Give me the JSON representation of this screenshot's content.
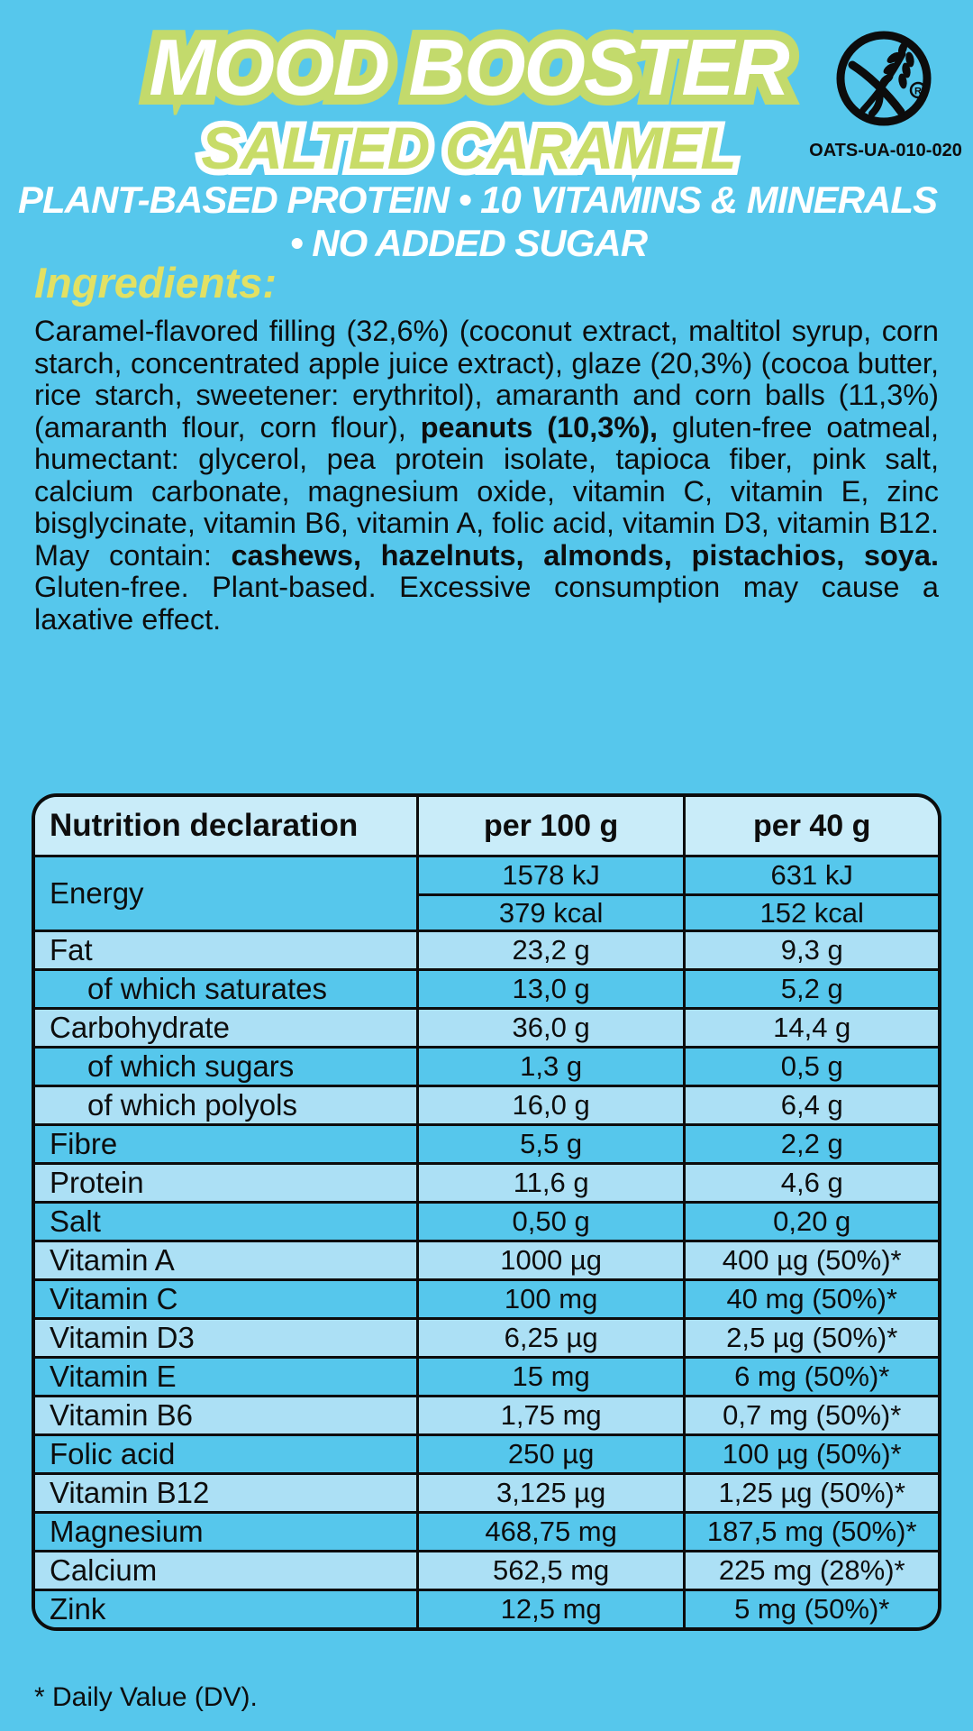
{
  "page": {
    "background": "#56C7EC"
  },
  "header": {
    "title": "MOOD BOOSTER",
    "subtitle": "SALTED CARAMEL",
    "tagline_line1": "PLANT-BASED PROTEIN • 10 VITAMINS & MINERALS",
    "tagline_line2": "• NO ADDED SUGAR",
    "gluten_free_code": "OATS-UA-010-020",
    "colors": {
      "title_outline": "#C3DA6C",
      "subtitle_fill": "#C8DC68",
      "heading_yellow": "#E2E164"
    }
  },
  "ingredients": {
    "heading": "Ingredients:",
    "segments": [
      {
        "text": "Caramel-flavored filling (32,6%) (coconut extract, maltitol syrup, corn starch, concentrated apple juice extract), glaze (20,3%) (cocoa butter, rice starch, sweetener: erythritol), amaranth and corn balls (11,3%) (amaranth flour, corn flour), ",
        "bold": false
      },
      {
        "text": "peanuts (10,3%),",
        "bold": true
      },
      {
        "text": " gluten-free oatmeal, humectant: glycerol, pea protein isolate, tapioca fiber, pink salt, calcium carbonate, magnesium oxide, vitamin C, vitamin E, zinc bisglycinate, vitamin B6, vitamin A, folic acid, vitamin D3, vitamin B12. May contain: ",
        "bold": false
      },
      {
        "text": "cashews, hazelnuts, almonds, pistachios, soya.",
        "bold": true
      },
      {
        "text": " Gluten-free. Plant-based. Excessive consumption may cause a laxative effect.",
        "bold": false
      }
    ]
  },
  "nutrition": {
    "headers": [
      "Nutrition declaration",
      "per 100 g",
      "per 40 g"
    ],
    "energy": {
      "label": "Energy",
      "rows": [
        [
          "1578 kJ",
          "631 kJ"
        ],
        [
          "379 kcal",
          "152 kcal"
        ]
      ]
    },
    "rows": [
      {
        "label": "Fat",
        "per100": "23,2 g",
        "per40": "9,3 g",
        "indent": false
      },
      {
        "label": "of which saturates",
        "per100": "13,0 g",
        "per40": "5,2 g",
        "indent": true
      },
      {
        "label": "Carbohydrate",
        "per100": "36,0 g",
        "per40": "14,4 g",
        "indent": false
      },
      {
        "label": "of which sugars",
        "per100": "1,3 g",
        "per40": "0,5 g",
        "indent": true
      },
      {
        "label": "of which polyols",
        "per100": "16,0 g",
        "per40": "6,4 g",
        "indent": true
      },
      {
        "label": "Fibre",
        "per100": "5,5 g",
        "per40": "2,2 g",
        "indent": false
      },
      {
        "label": "Protein",
        "per100": "11,6 g",
        "per40": "4,6 g",
        "indent": false
      },
      {
        "label": "Salt",
        "per100": "0,50 g",
        "per40": "0,20 g",
        "indent": false
      },
      {
        "label": "Vitamin A",
        "per100": "1000 µg",
        "per40": "400 µg (50%)*",
        "indent": false
      },
      {
        "label": "Vitamin C",
        "per100": "100 mg",
        "per40": "40 mg (50%)*",
        "indent": false
      },
      {
        "label": "Vitamin D3",
        "per100": "6,25 µg",
        "per40": "2,5 µg (50%)*",
        "indent": false
      },
      {
        "label": "Vitamin E",
        "per100": "15 mg",
        "per40": "6 mg (50%)*",
        "indent": false
      },
      {
        "label": "Vitamin B6",
        "per100": "1,75 mg",
        "per40": "0,7 mg (50%)*",
        "indent": false
      },
      {
        "label": "Folic acid",
        "per100": "250 µg",
        "per40": "100 µg (50%)*",
        "indent": false
      },
      {
        "label": "Vitamin B12",
        "per100": "3,125 µg",
        "per40": "1,25 µg (50%)*",
        "indent": false
      },
      {
        "label": "Magnesium",
        "per100": "468,75 mg",
        "per40": "187,5 mg (50%)*",
        "indent": false
      },
      {
        "label": "Calcium",
        "per100": "562,5 mg",
        "per40": "225 mg (28%)*",
        "indent": false
      },
      {
        "label": "Zink",
        "per100": "12,5 mg",
        "per40": "5 mg (50%)*",
        "indent": false
      }
    ],
    "colors": {
      "row_light": "#ACE0F5",
      "row_dark": "#56C7EC",
      "header_bg": "#C9ECF9",
      "border": "#0C0C0C"
    }
  },
  "footnote": "* Daily Value (DV)."
}
